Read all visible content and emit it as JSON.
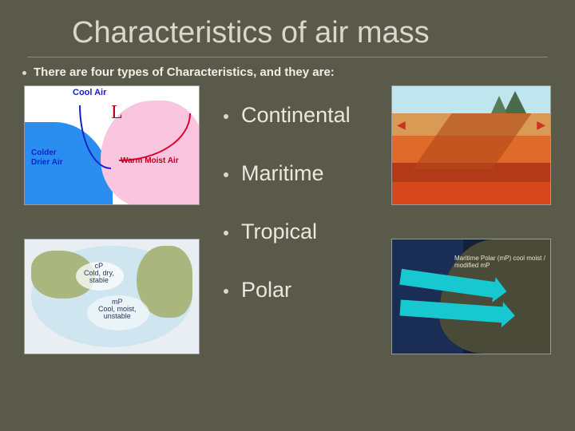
{
  "slide": {
    "background_color": "#595a4a",
    "title": "Characteristics of air mass",
    "title_color": "#d8d8cc",
    "title_fontsize": 38,
    "intro_bullet": "There are four types of Characteristics, and they are:",
    "intro_fontsize": 15,
    "intro_color": "#efefe6",
    "bullets": [
      {
        "label": "Continental"
      },
      {
        "label": "Maritime"
      },
      {
        "label": "Tropical"
      },
      {
        "label": "Polar"
      }
    ],
    "bullet_fontsize": 27,
    "bullet_color": "#e8e8de"
  },
  "images": {
    "top_left": {
      "kind": "weather-front-map",
      "title": "Cool Air",
      "low_symbol": "L",
      "warm_label": "Warm Moist Air",
      "cold_label": "Colder\nDrier Air",
      "ocean_color": "#2a8ef0",
      "warm_mass_color": "#f9c5df",
      "cold_front_color": "#1520c8",
      "warm_front_color": "#e00030"
    },
    "bottom_left": {
      "kind": "globe-air-mass-map",
      "labels": {
        "cP": "cP\nCold, dry,\nstable",
        "mP": "mP\nCool, moist,\nunstable"
      },
      "ocean_color": "#cfe5ef",
      "land_color": "#a9b77f"
    },
    "top_right": {
      "kind": "tectonic-cross-section",
      "layer_colors": [
        "#bfe5ef",
        "#d89a55",
        "#e06a2a",
        "#b23a18",
        "#d6471e"
      ],
      "mountain_color": "#4a6a4a",
      "arrow_color": "#d03020"
    },
    "bottom_right": {
      "kind": "satellite-coast-arrows",
      "labels": "Maritime Polar (mP) cool moist / modified mP",
      "sea_color": "#1a2e55",
      "land_color": "#4a4a38",
      "arrow_color": "#18c8d0"
    }
  }
}
